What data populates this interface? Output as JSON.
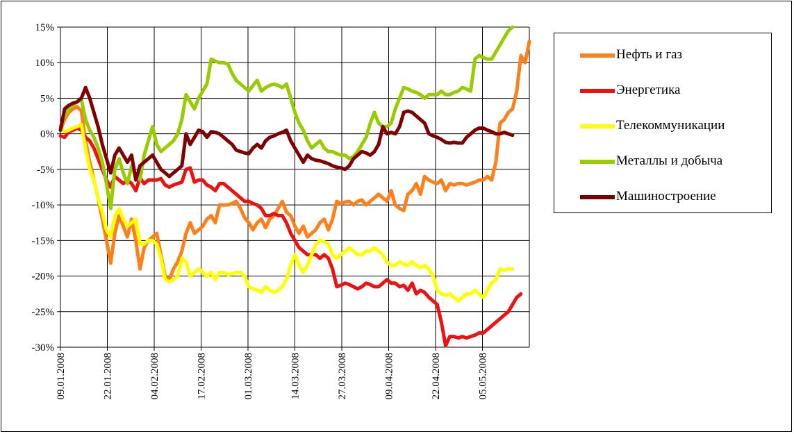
{
  "chart_data": {
    "type": "line",
    "title": "",
    "xlabel": "",
    "ylabel": "",
    "ylim": [
      -30,
      15
    ],
    "y_ticks": [
      "15%",
      "10%",
      "5%",
      "0%",
      "-5%",
      "-10%",
      "-15%",
      "-20%",
      "-25%",
      "-30%"
    ],
    "x_ticks": [
      "09.01.2008",
      "22.01.2008",
      "04.02.2008",
      "17.02.2008",
      "01.03.2008",
      "14.03.2008",
      "27.03.2008",
      "09.04.2008",
      "22.04.2008",
      "05.05.2008"
    ],
    "grid": true,
    "legend_position": "right",
    "series": [
      {
        "name": "Нефть и газ",
        "color": "#FF7F1A",
        "values": [
          0.5,
          2.0,
          3.0,
          3.5,
          3.8,
          3.2,
          -1.0,
          -4.0,
          -6.5,
          -9.0,
          -12.0,
          -15.0,
          -18.2,
          -14.0,
          -11.5,
          -13.0,
          -14.5,
          -12.0,
          -15.0,
          -19.0,
          -16.0,
          -15.0,
          -14.5,
          -14.0,
          -17.0,
          -20.0,
          -20.5,
          -19.0,
          -18.0,
          -16.5,
          -14.0,
          -12.5,
          -14.0,
          -13.5,
          -13.0,
          -12.0,
          -11.5,
          -12.5,
          -10.0,
          -10.0,
          -10.0,
          -9.8,
          -9.5,
          -10.5,
          -11.8,
          -12.5,
          -13.5,
          -12.5,
          -12.0,
          -13.2,
          -12.0,
          -11.5,
          -10.5,
          -9.5,
          -11.0,
          -11.5,
          -13.0,
          -14.0,
          -13.0,
          -14.5,
          -14.0,
          -13.5,
          -12.5,
          -12.0,
          -13.5,
          -12.0,
          -9.5,
          -9.8,
          -9.6,
          -9.5,
          -10.0,
          -9.5,
          -9.3,
          -10.0,
          -9.5,
          -9.0,
          -8.5,
          -9.0,
          -9.5,
          -8.0,
          -10.0,
          -10.5,
          -10.8,
          -8.5,
          -8.0,
          -7.0,
          -8.5,
          -6.0,
          -6.5,
          -6.8,
          -7.0,
          -6.5,
          -8.0,
          -7.0,
          -7.2,
          -7.0,
          -7.0,
          -7.2,
          -7.0,
          -6.8,
          -6.5,
          -6.5,
          -6.0,
          -6.5,
          -4.0,
          1.5,
          2.0,
          3.0,
          3.5,
          6.0,
          11.0,
          10.0,
          13.0
        ]
      },
      {
        "name": "Энергетика",
        "color": "#EE1111",
        "values": [
          -0.3,
          -0.5,
          0.3,
          0.5,
          0.8,
          0.5,
          -0.5,
          -1.0,
          -2.0,
          -3.5,
          -5.0,
          -6.5,
          -7.5,
          -6.0,
          -6.5,
          -7.0,
          -6.5,
          -7.0,
          -8.0,
          -6.2,
          -7.0,
          -6.5,
          -6.5,
          -6.5,
          -6.3,
          -7.2,
          -7.5,
          -7.2,
          -7.0,
          -6.8,
          -5.0,
          -4.8,
          -6.8,
          -6.5,
          -6.5,
          -7.2,
          -7.5,
          -8.0,
          -7.0,
          -7.0,
          -7.5,
          -8.0,
          -8.5,
          -9.0,
          -9.5,
          -9.5,
          -9.8,
          -10.0,
          -10.5,
          -11.5,
          -11.5,
          -11.2,
          -11.5,
          -11.5,
          -12.5,
          -14.0,
          -15.0,
          -16.0,
          -16.5,
          -17.0,
          -17.0,
          -17.0,
          -17.5,
          -17.0,
          -17.5,
          -19.0,
          -21.5,
          -21.3,
          -21.0,
          -21.2,
          -21.5,
          -21.8,
          -21.5,
          -21.0,
          -21.2,
          -21.5,
          -21.5,
          -21.0,
          -20.5,
          -21.0,
          -21.0,
          -21.5,
          -21.3,
          -22.0,
          -21.0,
          -22.5,
          -22.0,
          -22.3,
          -23.0,
          -23.5,
          -24.0,
          -26.5,
          -29.8,
          -28.5,
          -28.5,
          -28.7,
          -28.5,
          -28.7,
          -28.5,
          -28.3,
          -28.0,
          -28.0,
          -27.5,
          -27.0,
          -26.5,
          -26.0,
          -25.5,
          -25.0,
          -24.0,
          -23.0,
          -22.5
        ]
      },
      {
        "name": "Телекоммуникации",
        "color": "#FFFF00",
        "values": [
          0.5,
          0.3,
          0.5,
          0.8,
          1.0,
          1.3,
          -2.0,
          -5.0,
          -6.5,
          -9.0,
          -11.0,
          -13.5,
          -14.5,
          -11.5,
          -10.5,
          -12.0,
          -13.0,
          -12.5,
          -12.0,
          -15.5,
          -15.5,
          -15.0,
          -15.0,
          -15.5,
          -17.5,
          -20.5,
          -20.8,
          -20.5,
          -20.0,
          -17.5,
          -18.0,
          -20.0,
          -19.5,
          -19.0,
          -19.5,
          -20.0,
          -19.5,
          -20.5,
          -19.5,
          -19.5,
          -19.8,
          -19.7,
          -19.5,
          -19.5,
          -20.0,
          -21.5,
          -21.8,
          -22.0,
          -22.3,
          -21.5,
          -22.0,
          -22.3,
          -22.0,
          -21.5,
          -20.5,
          -18.5,
          -17.0,
          -18.5,
          -19.5,
          -18.5,
          -17.0,
          -15.5,
          -15.0,
          -15.2,
          -15.5,
          -17.0,
          -17.5,
          -17.0,
          -16.5,
          -16.0,
          -16.5,
          -17.0,
          -17.0,
          -16.5,
          -16.5,
          -16.0,
          -16.5,
          -17.0,
          -18.0,
          -18.5,
          -18.5,
          -18.0,
          -18.3,
          -18.5,
          -18.0,
          -18.5,
          -18.8,
          -18.5,
          -19.0,
          -20.0,
          -22.0,
          -22.5,
          -22.7,
          -22.5,
          -23.0,
          -23.5,
          -23.0,
          -22.5,
          -22.5,
          -22.0,
          -22.5,
          -23.0,
          -22.0,
          -21.0,
          -20.5,
          -19.0,
          -19.2,
          -19.0,
          -19.0
        ]
      },
      {
        "name": "Металлы и добыча",
        "color": "#99CC00",
        "values": [
          1.0,
          2.5,
          3.5,
          4.0,
          4.5,
          4.8,
          2.0,
          0.5,
          -0.5,
          -2.0,
          -4.0,
          -7.0,
          -10.5,
          -5.0,
          -3.5,
          -5.5,
          -7.0,
          -4.5,
          -6.0,
          -6.5,
          -3.0,
          -1.0,
          1.0,
          -1.5,
          -2.5,
          -2.0,
          -1.5,
          -1.0,
          0.0,
          2.0,
          5.5,
          4.5,
          3.5,
          5.0,
          6.0,
          7.0,
          10.5,
          10.2,
          10.0,
          10.0,
          9.8,
          8.5,
          7.5,
          7.0,
          6.5,
          6.0,
          6.8,
          7.5,
          6.0,
          6.5,
          6.8,
          7.0,
          6.8,
          6.5,
          7.0,
          5.0,
          3.0,
          1.5,
          0.5,
          -1.0,
          -2.0,
          -1.5,
          -1.0,
          -2.0,
          -2.5,
          -2.5,
          -2.8,
          -3.0,
          -3.0,
          -3.5,
          -3.2,
          -2.5,
          -1.5,
          -0.5,
          1.5,
          3.0,
          1.5,
          1.0,
          1.0,
          1.5,
          3.5,
          5.0,
          6.5,
          6.3,
          6.0,
          5.8,
          5.5,
          5.0,
          5.5,
          5.5,
          5.5,
          6.0,
          5.5,
          5.5,
          5.8,
          6.0,
          6.5,
          6.3,
          6.0,
          10.5,
          11.0,
          10.7,
          10.5,
          10.5,
          11.5,
          12.5,
          13.5,
          14.5,
          15.0
        ]
      },
      {
        "name": "Машиностроение",
        "color": "#7F0000",
        "values": [
          0.5,
          3.5,
          4.0,
          4.3,
          4.5,
          5.0,
          6.5,
          5.0,
          3.0,
          1.0,
          -1.5,
          -3.5,
          -5.5,
          -3.0,
          -2.0,
          -3.0,
          -4.0,
          -3.0,
          -6.5,
          -4.5,
          -4.0,
          -3.5,
          -3.0,
          -4.0,
          -5.0,
          -5.5,
          -6.0,
          -5.5,
          -5.0,
          -4.5,
          0.0,
          -1.5,
          -0.5,
          0.5,
          0.3,
          -0.5,
          0.3,
          0.2,
          0.0,
          -0.5,
          -1.0,
          -1.5,
          -2.3,
          -2.5,
          -2.7,
          -2.8,
          -2.0,
          -1.5,
          -2.0,
          -1.0,
          -0.5,
          -0.3,
          0.0,
          0.2,
          0.5,
          -1.0,
          -2.0,
          -3.0,
          -4.0,
          -3.0,
          -3.5,
          -3.7,
          -3.8,
          -4.0,
          -4.2,
          -4.5,
          -4.7,
          -4.8,
          -5.0,
          -4.5,
          -3.5,
          -3.0,
          -2.5,
          -2.7,
          -3.0,
          -2.5,
          -1.5,
          1.0,
          0.0,
          0.2,
          0.0,
          1.0,
          3.0,
          3.2,
          3.0,
          2.5,
          2.0,
          1.5,
          0.0,
          -0.3,
          -0.5,
          -0.8,
          -1.2,
          -1.3,
          -1.2,
          -1.3,
          -1.3,
          -0.5,
          0.0,
          0.5,
          0.8,
          0.8,
          0.5,
          0.3,
          0.0,
          0.0,
          0.2,
          0.0,
          -0.2
        ]
      }
    ]
  }
}
